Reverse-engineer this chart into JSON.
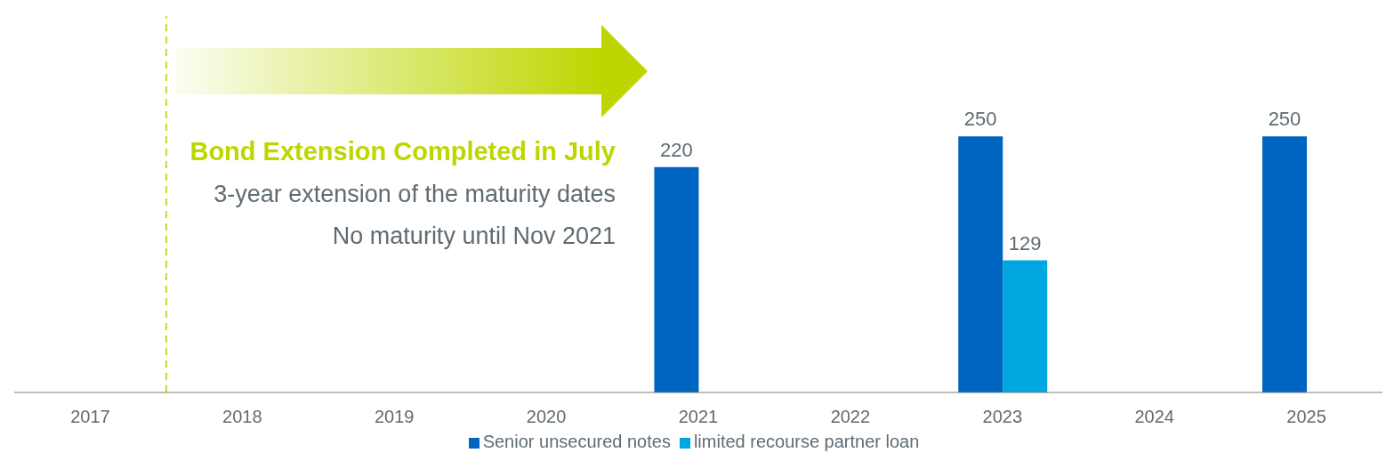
{
  "chart_data": {
    "type": "bar",
    "categories": [
      "2017",
      "2018",
      "2019",
      "2020",
      "2021",
      "2022",
      "2023",
      "2024",
      "2025"
    ],
    "series": [
      {
        "name": "Senior unsecured notes",
        "color": "#0064c1",
        "values": [
          null,
          null,
          null,
          null,
          220,
          null,
          250,
          null,
          250
        ]
      },
      {
        "name": "limited recourse partner loan",
        "color": "#00a6e0",
        "values": [
          null,
          null,
          null,
          null,
          null,
          null,
          129,
          null,
          null
        ]
      }
    ],
    "data_labels": true,
    "legend": "bottom",
    "ref_lines": [
      {
        "axis": "x",
        "value": "2018",
        "color": "#c5d92d",
        "line_style": "dashed"
      }
    ],
    "annotations": [
      "Bond Extension Completed in July",
      "3-year extension of the maturity dates",
      "No maturity until Nov 2021"
    ]
  }
}
